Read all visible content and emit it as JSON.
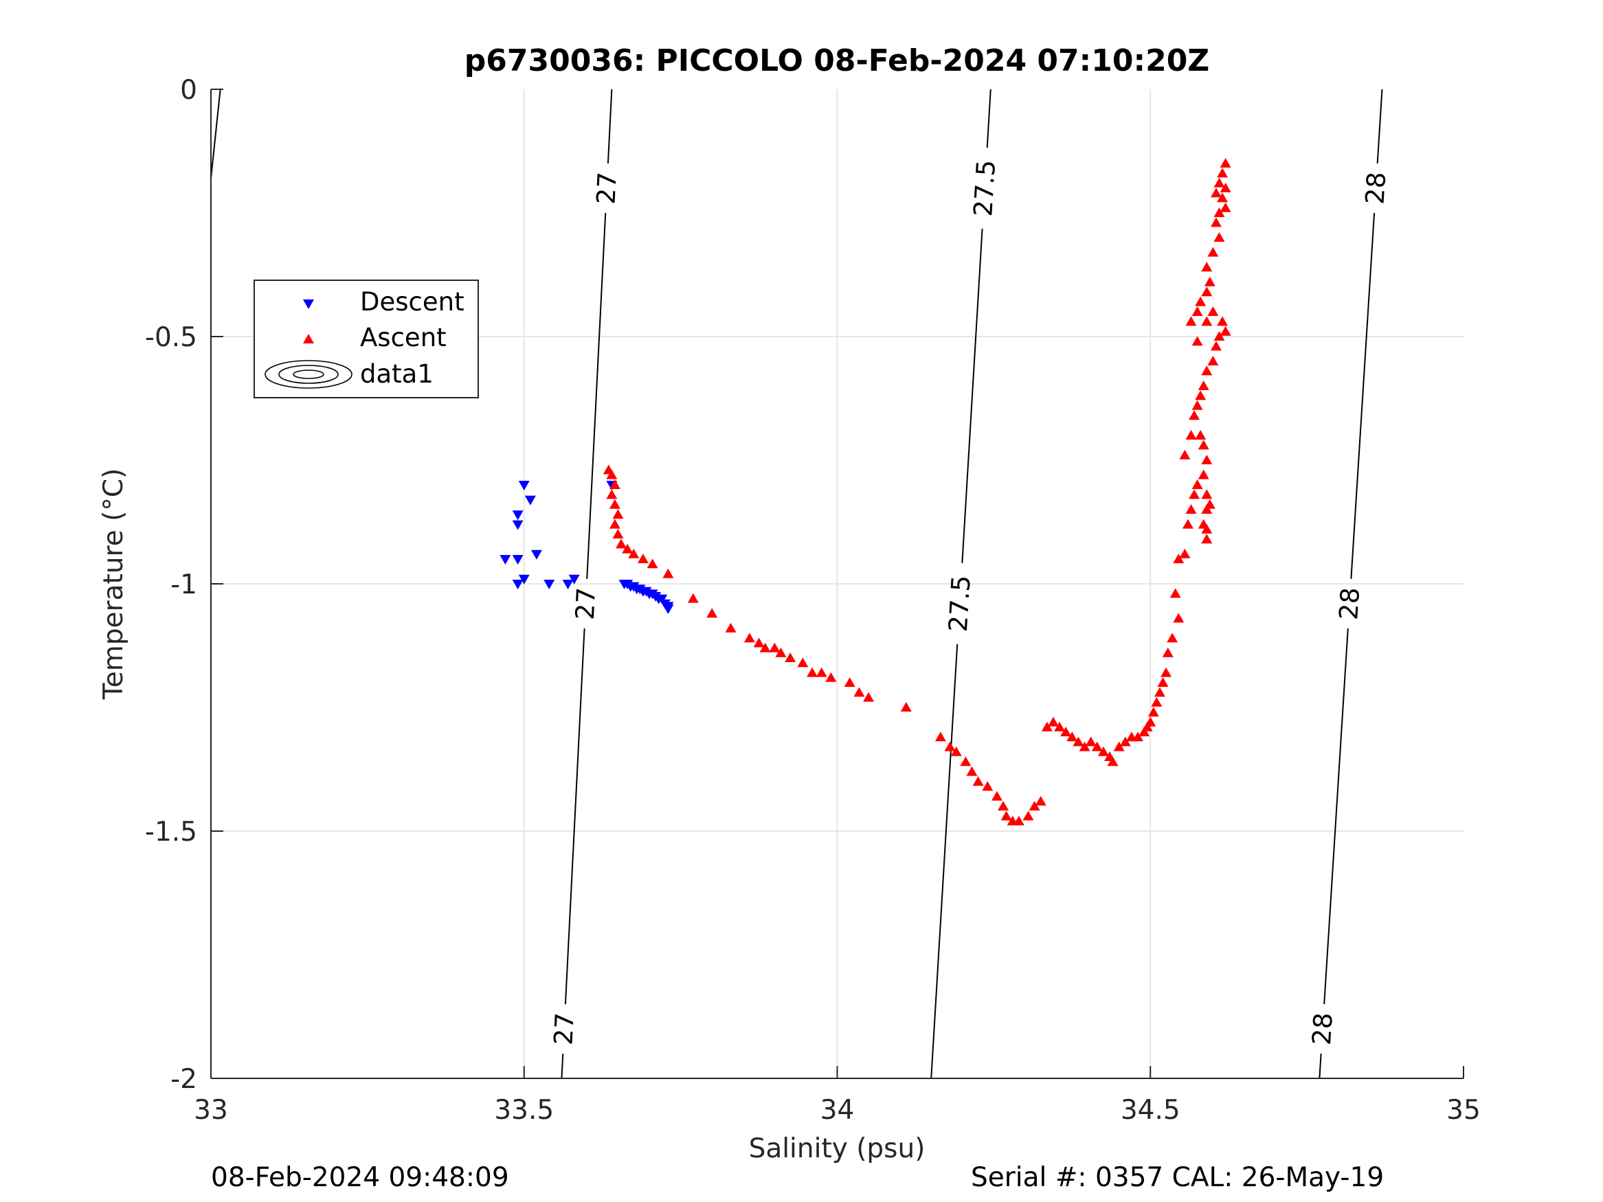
{
  "chart_data": {
    "type": "scatter",
    "title": "p6730036: PICCOLO 08-Feb-2024 07:10:20Z",
    "xlabel": "Salinity (psu)",
    "ylabel": "Temperature (°C)",
    "xlim": [
      33,
      35
    ],
    "ylim": [
      -2,
      0
    ],
    "xticks": [
      33,
      33.5,
      34,
      34.5,
      35
    ],
    "xtick_labels": [
      "33",
      "33.5",
      "34",
      "34.5",
      "35"
    ],
    "yticks": [
      0,
      -0.5,
      -1,
      -1.5,
      -2
    ],
    "ytick_labels": [
      "0",
      "-0.5",
      "-1",
      "-1.5",
      "-2"
    ],
    "grid": true,
    "legend_position": "upper-left",
    "legend": [
      "Descent",
      "Ascent",
      "data1"
    ],
    "colors": {
      "descent": "#0000ff",
      "ascent": "#ff0000",
      "contour": "#000000",
      "grid": "#e6e6e6"
    },
    "series": [
      {
        "name": "Descent",
        "marker": "triangle-down",
        "points": [
          [
            33.5,
            -0.8
          ],
          [
            33.51,
            -0.83
          ],
          [
            33.49,
            -0.86
          ],
          [
            33.49,
            -0.88
          ],
          [
            33.47,
            -0.95
          ],
          [
            33.49,
            -0.95
          ],
          [
            33.52,
            -0.94
          ],
          [
            33.5,
            -0.99
          ],
          [
            33.49,
            -1.0
          ],
          [
            33.54,
            -1.0
          ],
          [
            33.57,
            -1.0
          ],
          [
            33.58,
            -0.99
          ],
          [
            33.64,
            -0.8
          ],
          [
            33.66,
            -1.0
          ],
          [
            33.665,
            -1.0
          ],
          [
            33.67,
            -1.005
          ],
          [
            33.675,
            -1.005
          ],
          [
            33.68,
            -1.01
          ],
          [
            33.685,
            -1.01
          ],
          [
            33.69,
            -1.015
          ],
          [
            33.695,
            -1.015
          ],
          [
            33.7,
            -1.02
          ],
          [
            33.705,
            -1.02
          ],
          [
            33.71,
            -1.025
          ],
          [
            33.715,
            -1.03
          ],
          [
            33.72,
            -1.03
          ],
          [
            33.725,
            -1.04
          ],
          [
            33.73,
            -1.045
          ],
          [
            33.73,
            -1.05
          ]
        ]
      },
      {
        "name": "Ascent",
        "marker": "triangle-up",
        "points": [
          [
            33.635,
            -0.77
          ],
          [
            33.64,
            -0.78
          ],
          [
            33.645,
            -0.8
          ],
          [
            33.64,
            -0.82
          ],
          [
            33.645,
            -0.84
          ],
          [
            33.65,
            -0.86
          ],
          [
            33.645,
            -0.88
          ],
          [
            33.65,
            -0.9
          ],
          [
            33.655,
            -0.92
          ],
          [
            33.665,
            -0.93
          ],
          [
            33.675,
            -0.94
          ],
          [
            33.69,
            -0.95
          ],
          [
            33.705,
            -0.96
          ],
          [
            33.73,
            -0.98
          ],
          [
            33.77,
            -1.03
          ],
          [
            33.8,
            -1.06
          ],
          [
            33.83,
            -1.09
          ],
          [
            33.86,
            -1.11
          ],
          [
            33.875,
            -1.12
          ],
          [
            33.885,
            -1.13
          ],
          [
            33.9,
            -1.13
          ],
          [
            33.91,
            -1.14
          ],
          [
            33.925,
            -1.15
          ],
          [
            33.945,
            -1.16
          ],
          [
            33.96,
            -1.18
          ],
          [
            33.975,
            -1.18
          ],
          [
            33.99,
            -1.19
          ],
          [
            34.02,
            -1.2
          ],
          [
            34.035,
            -1.22
          ],
          [
            34.05,
            -1.23
          ],
          [
            34.11,
            -1.25
          ],
          [
            34.165,
            -1.31
          ],
          [
            34.18,
            -1.33
          ],
          [
            34.19,
            -1.34
          ],
          [
            34.205,
            -1.36
          ],
          [
            34.215,
            -1.38
          ],
          [
            34.225,
            -1.4
          ],
          [
            34.24,
            -1.41
          ],
          [
            34.255,
            -1.43
          ],
          [
            34.265,
            -1.45
          ],
          [
            34.27,
            -1.47
          ],
          [
            34.28,
            -1.48
          ],
          [
            34.29,
            -1.48
          ],
          [
            34.305,
            -1.47
          ],
          [
            34.315,
            -1.45
          ],
          [
            34.325,
            -1.44
          ],
          [
            34.335,
            -1.29
          ],
          [
            34.345,
            -1.28
          ],
          [
            34.355,
            -1.29
          ],
          [
            34.365,
            -1.3
          ],
          [
            34.375,
            -1.31
          ],
          [
            34.385,
            -1.32
          ],
          [
            34.395,
            -1.33
          ],
          [
            34.405,
            -1.32
          ],
          [
            34.415,
            -1.33
          ],
          [
            34.425,
            -1.34
          ],
          [
            34.435,
            -1.35
          ],
          [
            34.44,
            -1.36
          ],
          [
            34.45,
            -1.33
          ],
          [
            34.46,
            -1.32
          ],
          [
            34.47,
            -1.31
          ],
          [
            34.48,
            -1.31
          ],
          [
            34.49,
            -1.3
          ],
          [
            34.495,
            -1.29
          ],
          [
            34.5,
            -1.28
          ],
          [
            34.505,
            -1.26
          ],
          [
            34.51,
            -1.24
          ],
          [
            34.515,
            -1.22
          ],
          [
            34.52,
            -1.2
          ],
          [
            34.525,
            -1.18
          ],
          [
            34.528,
            -1.14
          ],
          [
            34.535,
            -1.11
          ],
          [
            34.545,
            -1.07
          ],
          [
            34.54,
            -1.02
          ],
          [
            34.545,
            -0.95
          ],
          [
            34.555,
            -0.94
          ],
          [
            34.56,
            -0.88
          ],
          [
            34.565,
            -0.85
          ],
          [
            34.57,
            -0.82
          ],
          [
            34.575,
            -0.8
          ],
          [
            34.585,
            -0.78
          ],
          [
            34.59,
            -0.82
          ],
          [
            34.59,
            -0.85
          ],
          [
            34.585,
            -0.88
          ],
          [
            34.59,
            -0.91
          ],
          [
            34.59,
            -0.89
          ],
          [
            34.595,
            -0.84
          ],
          [
            34.59,
            -0.75
          ],
          [
            34.585,
            -0.72
          ],
          [
            34.58,
            -0.7
          ],
          [
            34.565,
            -0.7
          ],
          [
            34.555,
            -0.74
          ],
          [
            34.57,
            -0.66
          ],
          [
            34.575,
            -0.64
          ],
          [
            34.58,
            -0.62
          ],
          [
            34.585,
            -0.6
          ],
          [
            34.59,
            -0.57
          ],
          [
            34.6,
            -0.55
          ],
          [
            34.605,
            -0.52
          ],
          [
            34.61,
            -0.5
          ],
          [
            34.62,
            -0.49
          ],
          [
            34.615,
            -0.47
          ],
          [
            34.6,
            -0.45
          ],
          [
            34.59,
            -0.47
          ],
          [
            34.575,
            -0.51
          ],
          [
            34.565,
            -0.47
          ],
          [
            34.575,
            -0.45
          ],
          [
            34.58,
            -0.43
          ],
          [
            34.59,
            -0.41
          ],
          [
            34.595,
            -0.39
          ],
          [
            34.59,
            -0.36
          ],
          [
            34.6,
            -0.33
          ],
          [
            34.61,
            -0.3
          ],
          [
            34.605,
            -0.27
          ],
          [
            34.61,
            -0.25
          ],
          [
            34.615,
            -0.22
          ],
          [
            34.61,
            -0.19
          ],
          [
            34.615,
            -0.17
          ],
          [
            34.62,
            -0.15
          ],
          [
            34.62,
            -0.2
          ],
          [
            34.605,
            -0.21
          ],
          [
            34.62,
            -0.24
          ]
        ]
      }
    ],
    "contours": [
      {
        "label": "27",
        "line": [
          [
            33.56,
            -2.0
          ],
          [
            33.64,
            0.0
          ]
        ],
        "label_positions": [
          -1.9,
          -1.04,
          -0.2
        ]
      },
      {
        "label": "27.5",
        "line": [
          [
            34.15,
            -2.0
          ],
          [
            34.245,
            0.0
          ]
        ],
        "label_positions": [
          -1.04,
          -0.2
        ]
      },
      {
        "label": "28",
        "line": [
          [
            34.77,
            -2.0
          ],
          [
            34.87,
            0.0
          ]
        ],
        "label_positions": [
          -1.9,
          -1.04,
          -0.2
        ]
      },
      {
        "label": "",
        "line": [
          [
            33.0,
            -0.18
          ],
          [
            33.015,
            0.0
          ]
        ],
        "label_positions": []
      }
    ]
  },
  "footer": {
    "left": "08-Feb-2024 09:48:09",
    "right": "Serial #: 0357  CAL: 26-May-19"
  }
}
